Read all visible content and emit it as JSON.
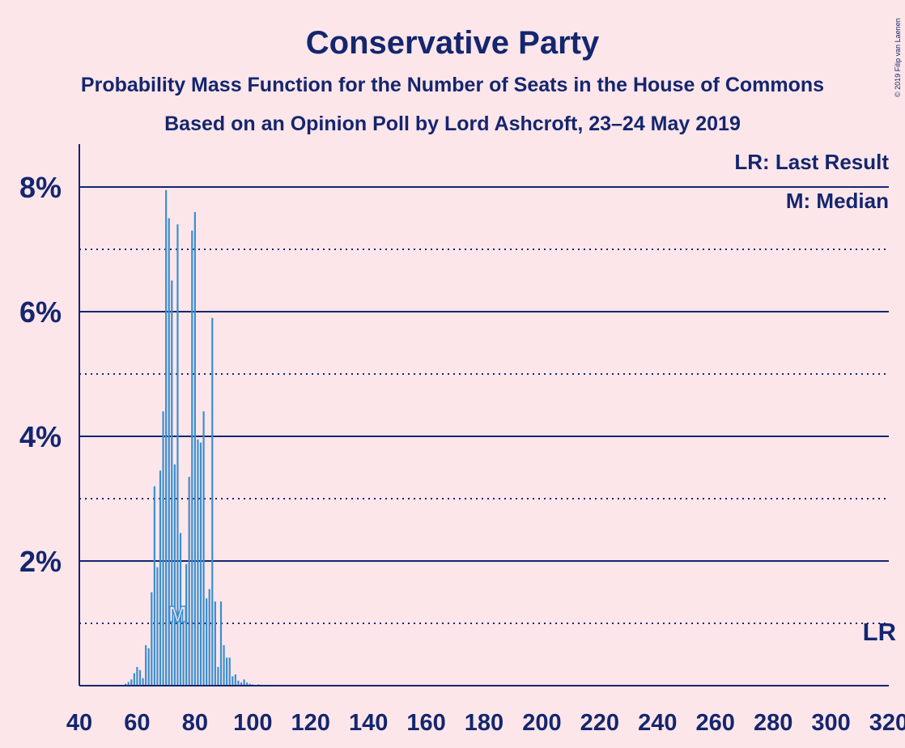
{
  "title": "Conservative Party",
  "subtitle1": "Probability Mass Function for the Number of Seats in the House of Commons",
  "subtitle2": "Based on an Opinion Poll by Lord Ashcroft, 23–24 May 2019",
  "copyright": "© 2019 Filip van Laenen",
  "legend": {
    "last_result": "LR: Last Result",
    "median": "M: Median"
  },
  "markers": {
    "last_result_label": "LR",
    "last_result_seats": 317,
    "median_label": "M",
    "median_seats": 74
  },
  "colors": {
    "background": "#FDE6EA",
    "text": "#14266E",
    "bar": "#3A8FD0",
    "axis": "#14266E"
  },
  "chart_data": {
    "type": "bar",
    "title": "Conservative Party",
    "xlabel": "",
    "ylabel": "",
    "xlim": [
      40,
      320
    ],
    "ylim": [
      0,
      8.6
    ],
    "x_ticks": [
      40,
      60,
      80,
      100,
      120,
      140,
      160,
      180,
      200,
      220,
      240,
      260,
      280,
      300,
      320
    ],
    "x_tick_labels": [
      "40",
      "60",
      "80",
      "100",
      "120",
      "140",
      "160",
      "180",
      "200",
      "220",
      "240",
      "260",
      "280",
      "300",
      "320"
    ],
    "y_ticks_major": [
      2,
      4,
      6,
      8
    ],
    "y_tick_labels": [
      "2%",
      "4%",
      "6%",
      "8%"
    ],
    "y_ticks_minor": [
      1,
      3,
      5,
      7
    ],
    "grid": true,
    "legend_position": "top-right",
    "seats": [
      55,
      56,
      57,
      58,
      59,
      60,
      61,
      62,
      63,
      64,
      65,
      66,
      67,
      68,
      69,
      70,
      71,
      72,
      73,
      74,
      75,
      76,
      77,
      78,
      79,
      80,
      81,
      82,
      83,
      84,
      85,
      86,
      87,
      88,
      89,
      90,
      91,
      92,
      93,
      94,
      95,
      96,
      97,
      98,
      99,
      100,
      101,
      102
    ],
    "values": [
      0.01,
      0.03,
      0.06,
      0.1,
      0.2,
      0.3,
      0.25,
      0.12,
      0.65,
      0.6,
      1.5,
      3.2,
      1.9,
      3.45,
      4.4,
      7.95,
      7.5,
      6.5,
      3.55,
      7.4,
      2.45,
      1.2,
      1.95,
      3.35,
      7.3,
      7.6,
      3.95,
      3.9,
      4.4,
      1.4,
      1.55,
      5.9,
      1.35,
      0.3,
      1.35,
      0.65,
      0.45,
      0.45,
      0.15,
      0.18,
      0.08,
      0.05,
      0.1,
      0.05,
      0.03,
      0.02,
      0.01,
      0.02
    ]
  }
}
